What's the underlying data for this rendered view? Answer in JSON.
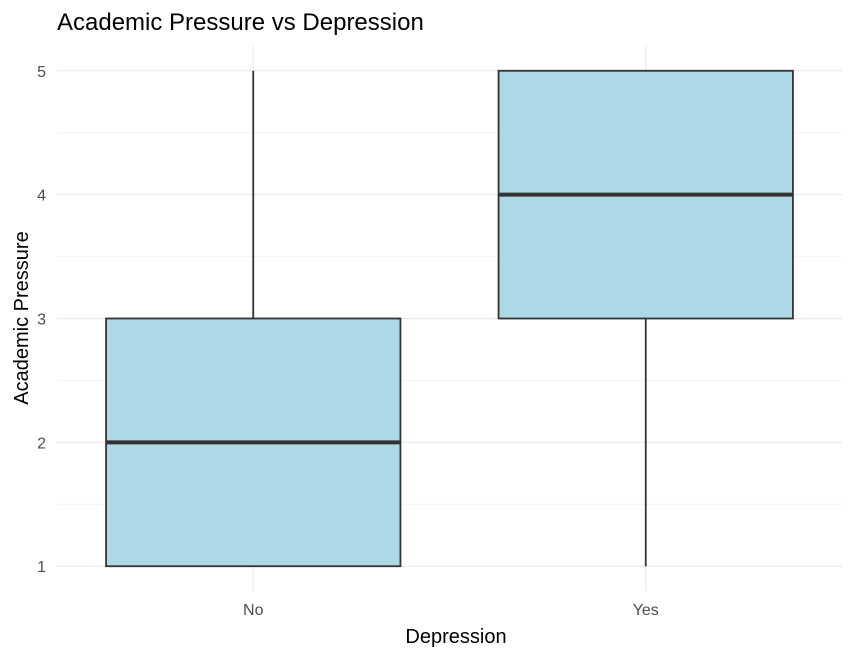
{
  "chart_data": {
    "type": "boxplot",
    "title": "Academic Pressure vs Depression",
    "xlabel": "Depression",
    "ylabel": "Academic Pressure",
    "categories": [
      "No",
      "Yes"
    ],
    "boxes": [
      {
        "category": "No",
        "min": 1,
        "q1": 1,
        "median": 2,
        "q3": 3,
        "max": 5
      },
      {
        "category": "Yes",
        "min": 1,
        "q1": 3,
        "median": 4,
        "q3": 5,
        "max": 5
      }
    ],
    "ylim": [
      0.8,
      5.2
    ],
    "yticks": [
      1,
      2,
      3,
      4,
      5
    ],
    "grid": true,
    "box_fill": "#add8e6",
    "box_stroke": "#333333"
  }
}
